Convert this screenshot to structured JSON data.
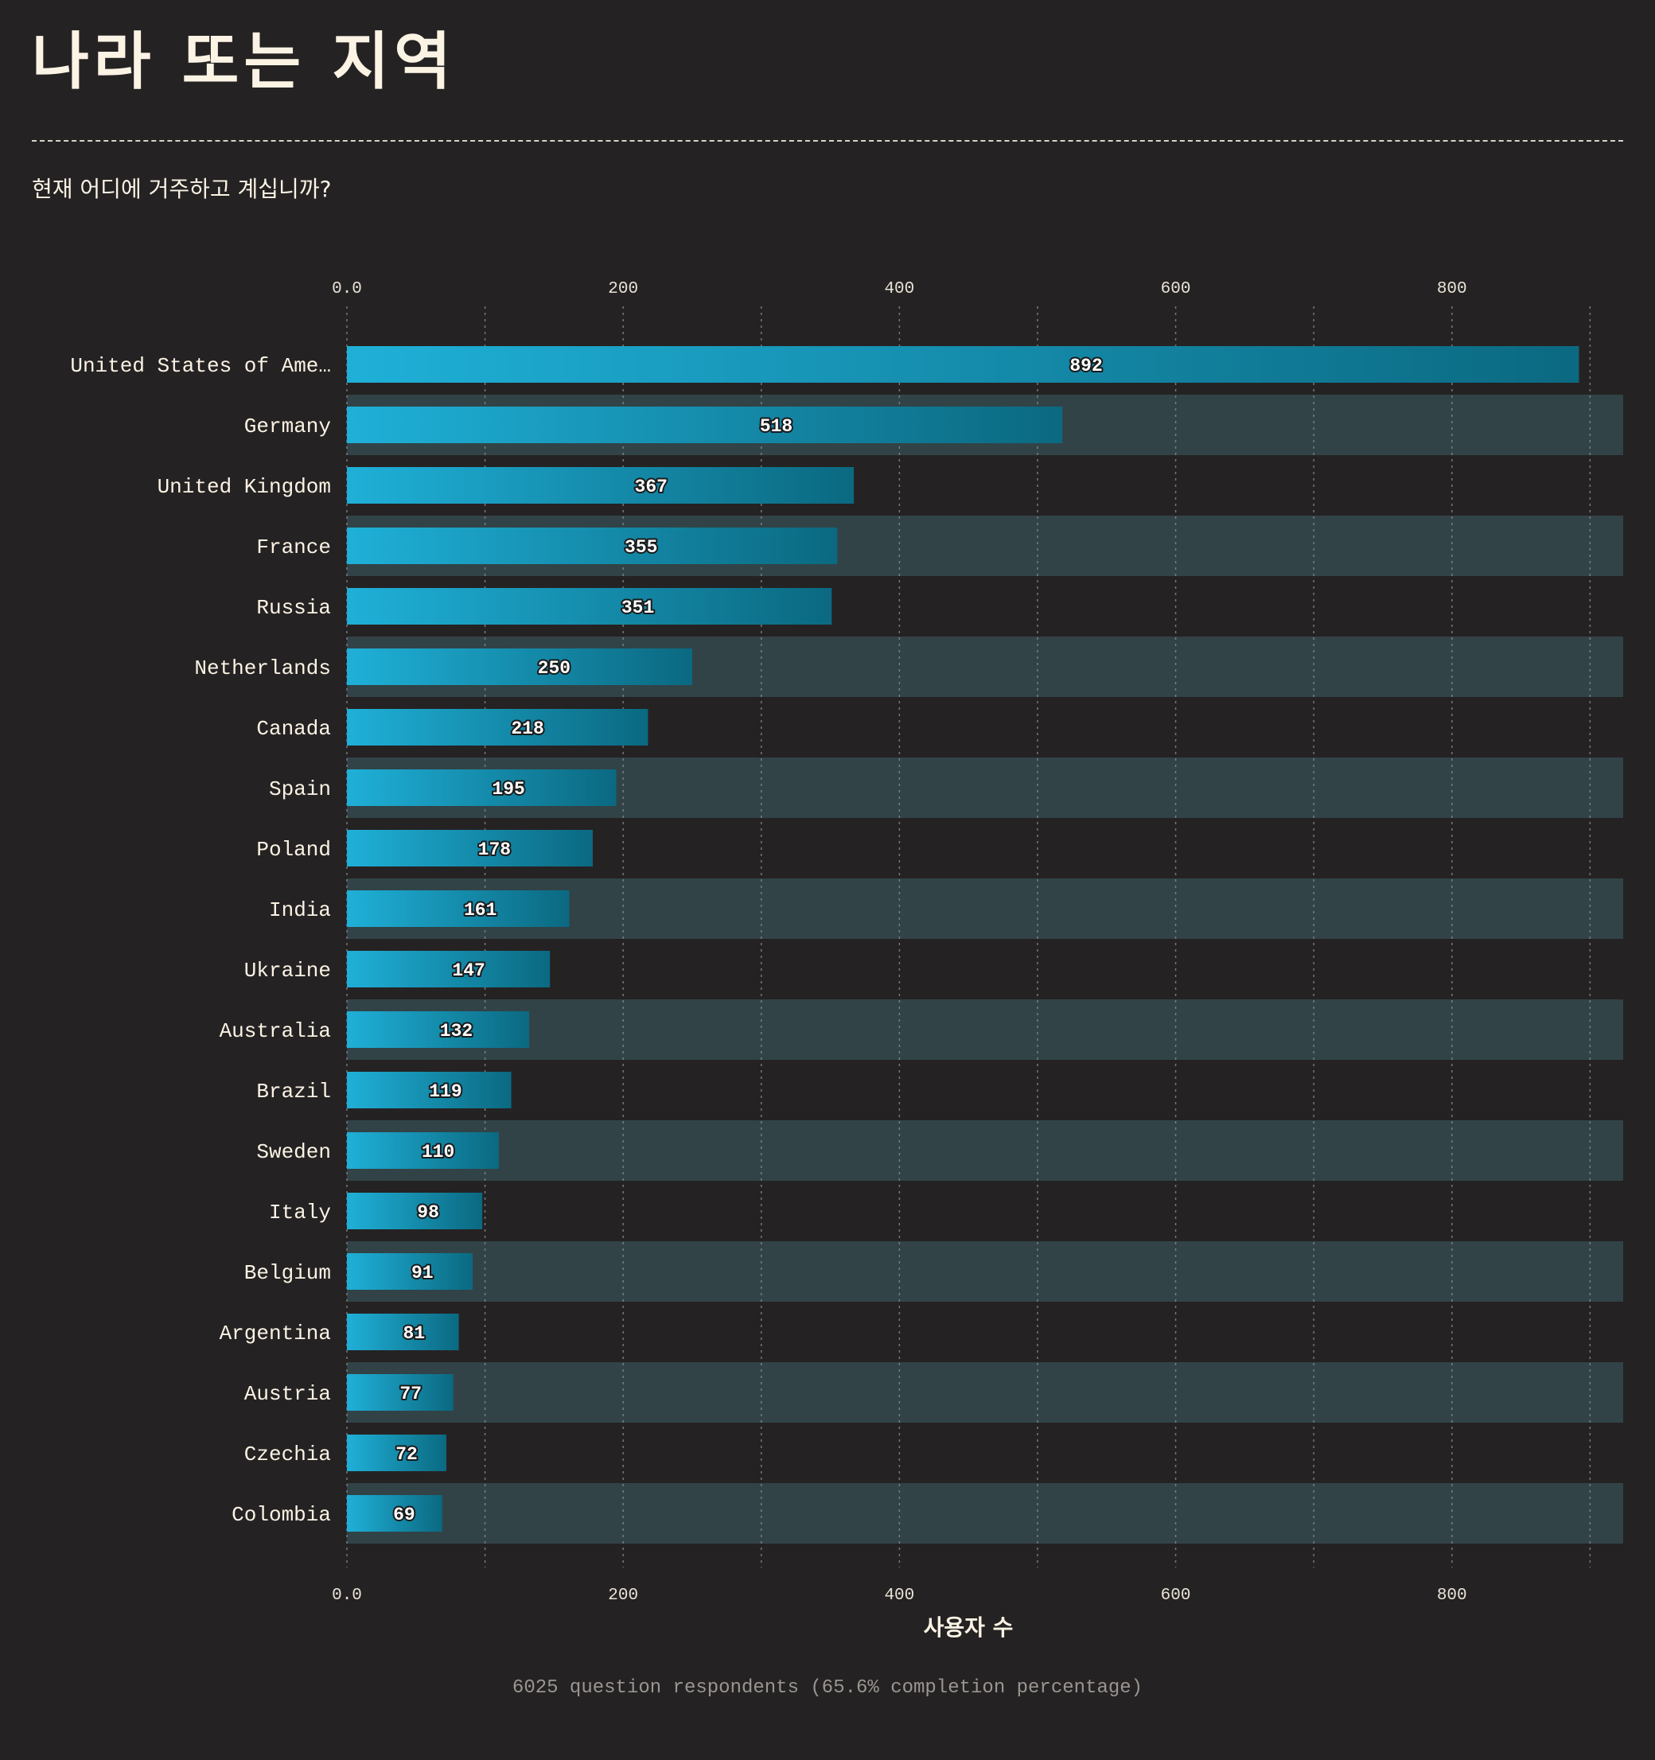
{
  "page_title": "나라 또는 지역",
  "subtitle": "현재 어디에 거주하고 계십니까?",
  "footnote": "6025 question respondents (65.6% completion percentage)",
  "colors": {
    "background": "#252223",
    "band": "#314347",
    "bar_start": "#1fb0d8",
    "bar_end": "#0b6981",
    "text": "#fbf3e4",
    "grid": "#8c8c8c"
  },
  "chart_data": {
    "type": "bar",
    "orientation": "horizontal",
    "title": "",
    "xlabel": "사용자 수",
    "ylabel": "",
    "xlim": [
      0,
      924
    ],
    "x_ticks": [
      0,
      200,
      400,
      600,
      800
    ],
    "x_tick_labels": [
      "0.0",
      "200",
      "400",
      "600",
      "800"
    ],
    "grid": true,
    "categories": [
      "United States of Ame…",
      "Germany",
      "United Kingdom",
      "France",
      "Russia",
      "Netherlands",
      "Canada",
      "Spain",
      "Poland",
      "India",
      "Ukraine",
      "Australia",
      "Brazil",
      "Sweden",
      "Italy",
      "Belgium",
      "Argentina",
      "Austria",
      "Czechia",
      "Colombia"
    ],
    "values": [
      892,
      518,
      367,
      355,
      351,
      250,
      218,
      195,
      178,
      161,
      147,
      132,
      119,
      110,
      98,
      91,
      81,
      77,
      72,
      69
    ],
    "value_labels": [
      "892",
      "518",
      "367",
      "355",
      "351",
      "250",
      "218",
      "195",
      "178",
      "161",
      "147",
      "132",
      "119",
      "110",
      "98",
      "91",
      "81",
      "77",
      "72",
      "69"
    ]
  }
}
